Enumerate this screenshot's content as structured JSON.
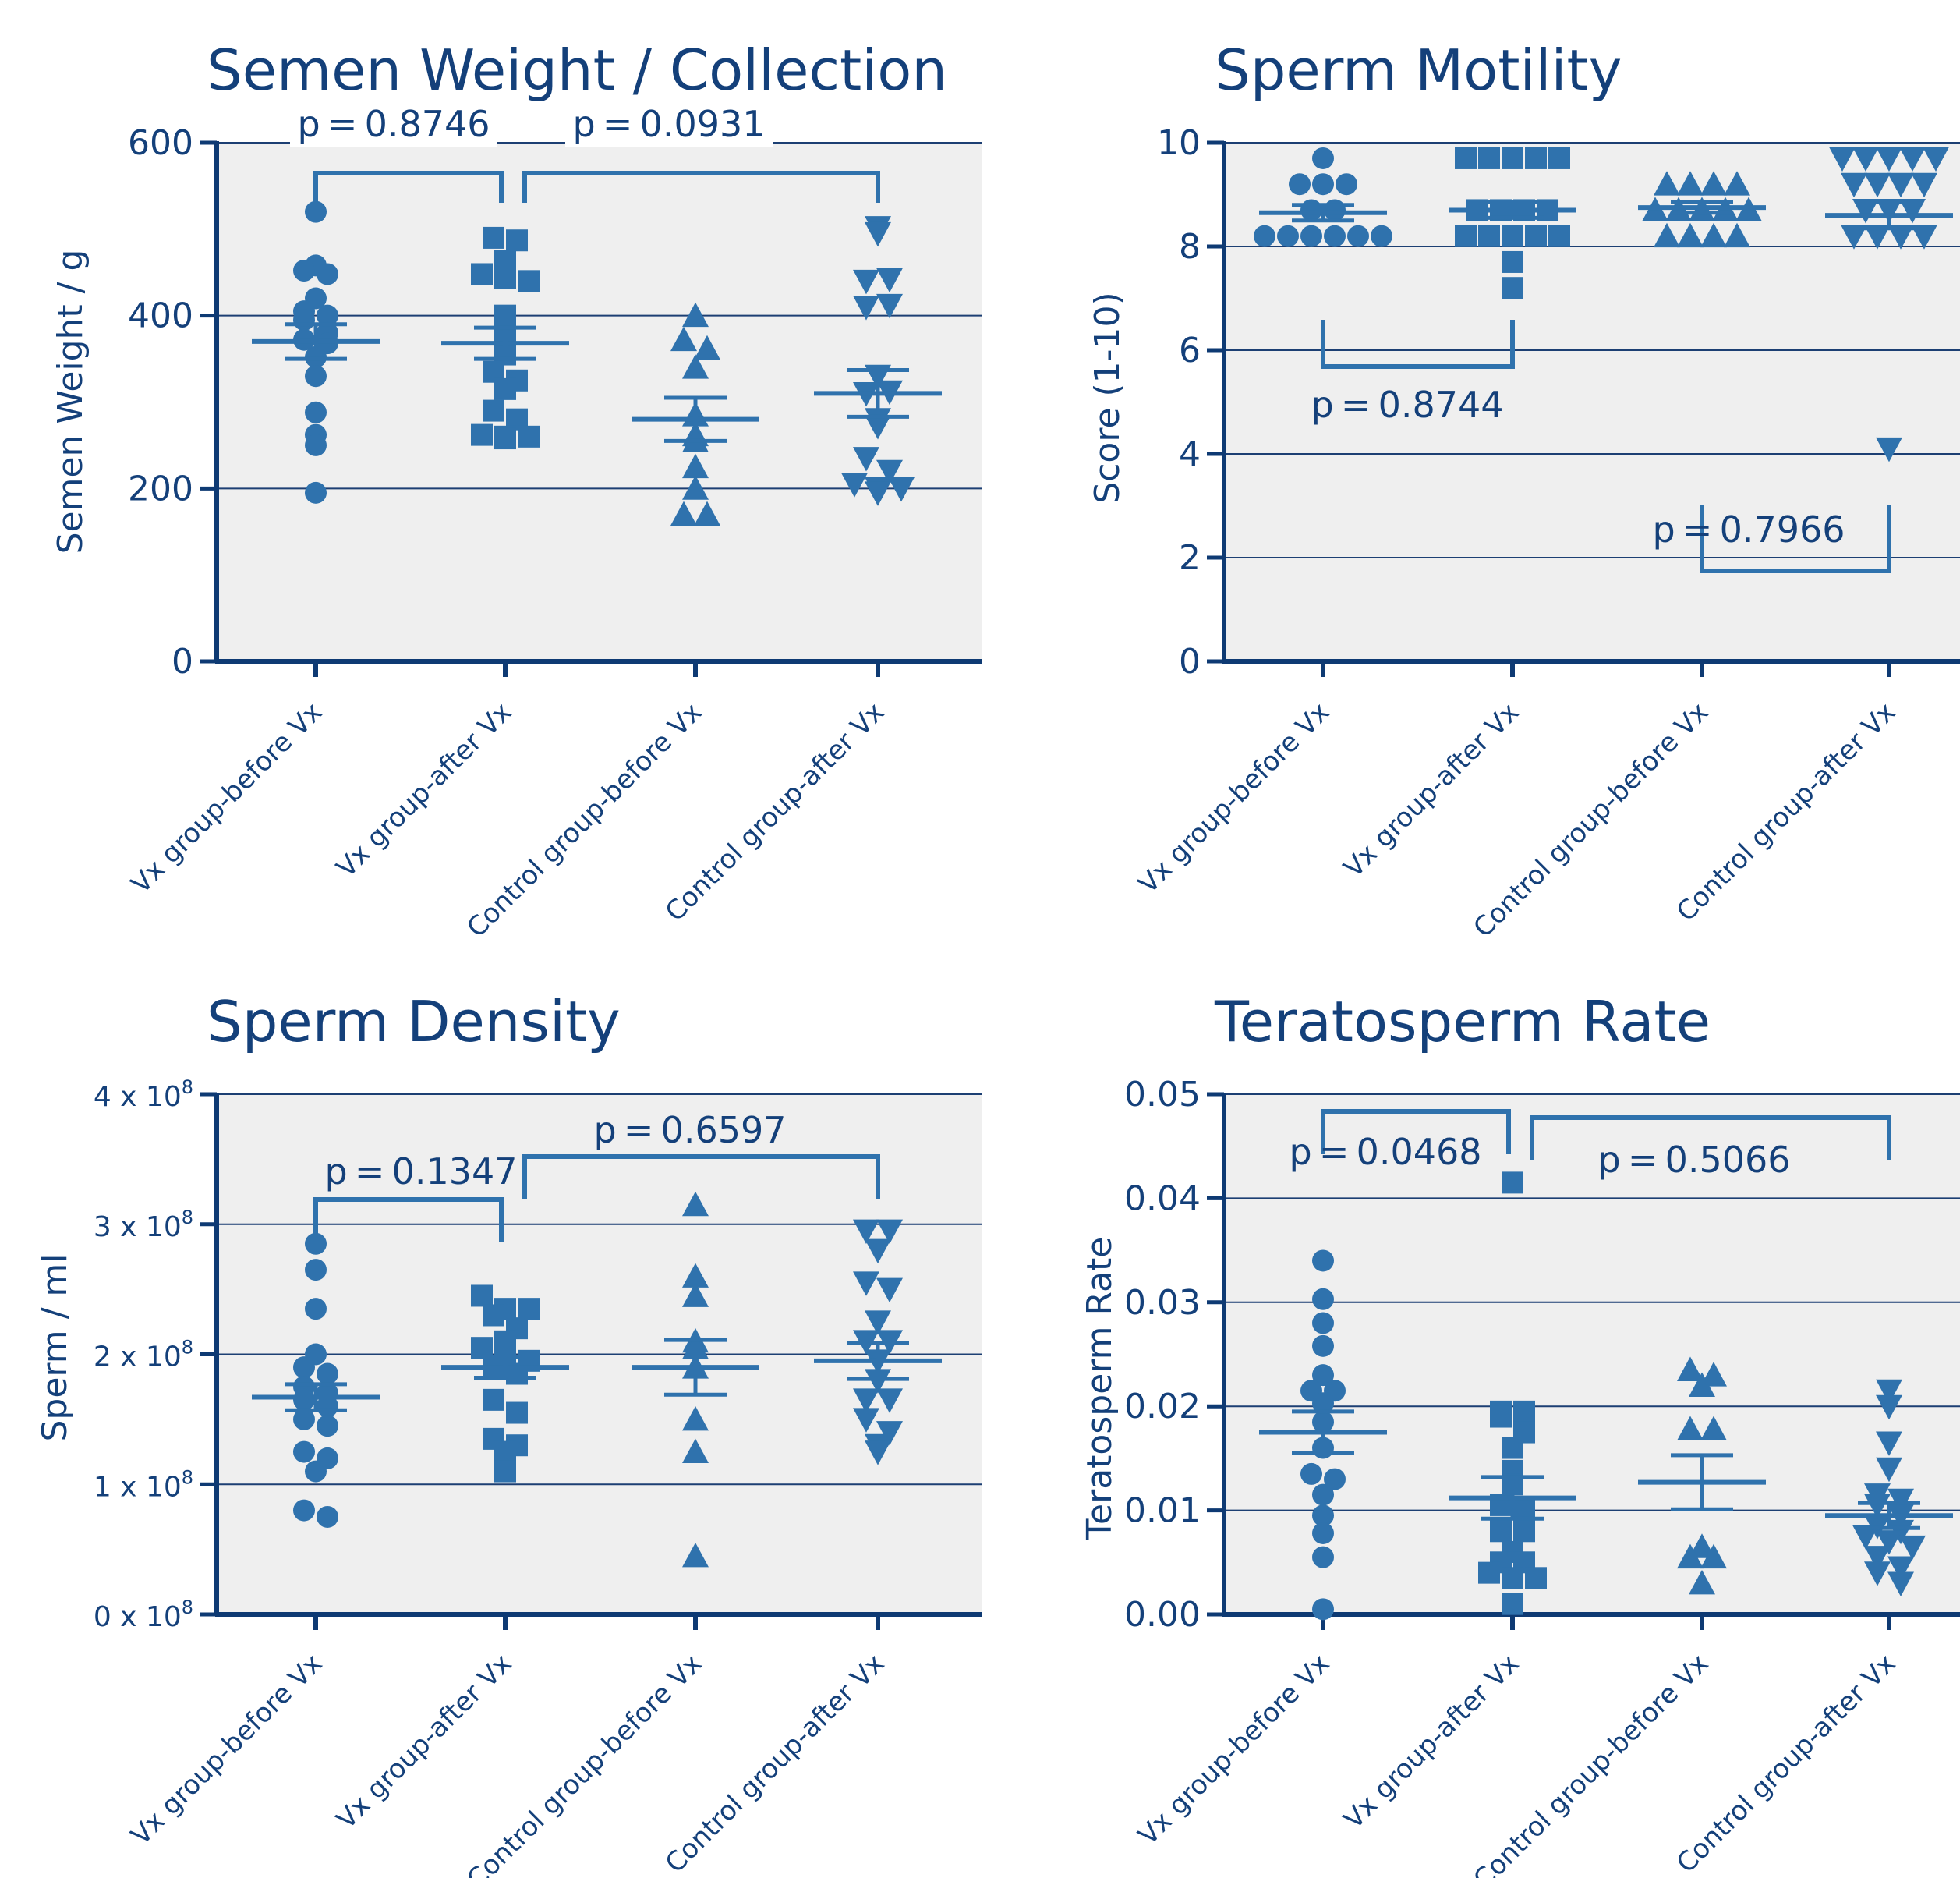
{
  "colors": {
    "marker": "#2f72ad",
    "axis": "#0e3a73",
    "text": "#14407a",
    "plot_bg": "#efefef",
    "grid": "#1c3f73",
    "bracket": "#2f72ad"
  },
  "chart_data": [
    {
      "type": "scatter",
      "title": "Semen Weight / Collection",
      "ylabel": "Semen Weight / g",
      "ylim": [
        0,
        600
      ],
      "yticks": [
        0,
        200,
        400,
        600
      ],
      "ytick_labels": [
        "0",
        "200",
        "400",
        "600"
      ],
      "grid": true,
      "categories": [
        "Vx group-before Vx",
        "Vx group-after Vx",
        "Control group-before Vx",
        "Control group-after Vx"
      ],
      "series": [
        {
          "marker": "circle",
          "values": [
            520,
            458,
            452,
            448,
            420,
            405,
            400,
            395,
            380,
            372,
            368,
            352,
            330,
            288,
            262,
            250,
            195
          ],
          "mean": 370,
          "sem": 20
        },
        {
          "marker": "square",
          "values": [
            490,
            487,
            463,
            448,
            443,
            440,
            400,
            395,
            370,
            355,
            335,
            325,
            315,
            290,
            280,
            262,
            260,
            260,
            258
          ],
          "mean": 368,
          "sem": 18
        },
        {
          "marker": "triangle-up",
          "values": [
            400,
            372,
            362,
            340,
            285,
            262,
            255,
            225,
            200,
            170,
            170
          ],
          "mean": 280,
          "sem": 25
        },
        {
          "marker": "triangle-down",
          "values": [
            502,
            495,
            440,
            442,
            410,
            412,
            330,
            310,
            312,
            280,
            272,
            235,
            220,
            205,
            200,
            200,
            195
          ],
          "mean": 310,
          "sem": 27
        }
      ],
      "comparisons": [
        {
          "label": "p = 0.8746",
          "from": 0,
          "to": 1
        },
        {
          "label": "p = 0.0931",
          "from": 1,
          "to": 3
        }
      ]
    },
    {
      "type": "scatter",
      "title": "Sperm Motility",
      "ylabel": "Score (1-10)",
      "ylim": [
        0,
        10
      ],
      "yticks": [
        0,
        2,
        4,
        6,
        8,
        10
      ],
      "ytick_labels": [
        "0",
        "2",
        "4",
        "6",
        "8",
        "10"
      ],
      "grid": true,
      "categories": [
        "Vx group-before Vx",
        "Vx group-after Vx",
        "Control group-before Vx",
        "Control group-after Vx"
      ],
      "series": [
        {
          "marker": "circle",
          "values": [
            9.7,
            9.2,
            9.2,
            9.2,
            8.7,
            8.7,
            8.2,
            8.2,
            8.2,
            8.2,
            8.2,
            8.2
          ],
          "mean": 8.65,
          "sem": 0.15
        },
        {
          "marker": "square",
          "values": [
            9.7,
            9.7,
            9.7,
            9.7,
            9.7,
            8.7,
            8.7,
            8.7,
            8.7,
            8.2,
            8.2,
            8.2,
            8.2,
            8.2,
            7.7,
            7.2
          ],
          "mean": 8.7,
          "sem": 0.15
        },
        {
          "marker": "triangle-up",
          "values": [
            9.2,
            9.2,
            9.2,
            9.2,
            8.7,
            8.7,
            8.7,
            8.7,
            8.7,
            8.2,
            8.2,
            8.2,
            8.2
          ],
          "mean": 8.75,
          "sem": 0.1
        },
        {
          "marker": "triangle-down",
          "values": [
            9.7,
            9.7,
            9.7,
            9.7,
            9.7,
            9.2,
            9.2,
            9.2,
            9.2,
            8.7,
            8.7,
            8.7,
            8.2,
            8.2,
            8.2,
            8.2,
            4.1
          ],
          "mean": 8.6,
          "sem": 0.25
        },
        {
          "marker": "none",
          "values": []
        }
      ],
      "comparisons": [
        {
          "label": "p = 0.8744",
          "from": 0,
          "to": 1
        },
        {
          "label": "p = 0.7966",
          "from": 2,
          "to": 3
        }
      ]
    },
    {
      "type": "scatter",
      "title": "Sperm Density",
      "ylabel": "Sperm / ml",
      "ylim": [
        0,
        4
      ],
      "yticks": [
        0,
        1,
        2,
        3,
        4
      ],
      "ytick_labels": [
        "0",
        "1",
        "2",
        "3",
        "4"
      ],
      "ytick_prefix": "x 10",
      "ytick_exp": "8",
      "grid": true,
      "categories": [
        "Vx group-before Vx",
        "Vx group-after Vx",
        "Control group-before Vx",
        "Control group-after Vx"
      ],
      "series": [
        {
          "marker": "circle",
          "values": [
            2.85,
            2.65,
            2.35,
            2.0,
            1.9,
            1.85,
            1.75,
            1.7,
            1.65,
            1.6,
            1.5,
            1.45,
            1.25,
            1.2,
            1.1,
            0.8,
            0.75
          ],
          "mean": 1.67,
          "sem": 0.1
        },
        {
          "marker": "square",
          "values": [
            2.45,
            2.35,
            2.35,
            2.3,
            2.2,
            2.1,
            2.05,
            2.0,
            1.95,
            1.9,
            1.85,
            1.65,
            1.55,
            1.35,
            1.3,
            1.25,
            1.1
          ],
          "mean": 1.9,
          "sem": 0.08
        },
        {
          "marker": "triangle-up",
          "values": [
            3.15,
            2.6,
            2.45,
            2.1,
            2.05,
            1.9,
            1.5,
            1.25,
            0.45
          ],
          "mean": 1.9,
          "sem": 0.21
        },
        {
          "marker": "triangle-down",
          "values": [
            2.95,
            2.95,
            2.8,
            2.55,
            2.5,
            2.25,
            2.1,
            2.1,
            1.95,
            1.8,
            1.65,
            1.65,
            1.5,
            1.4,
            1.3,
            1.25
          ],
          "mean": 1.95,
          "sem": 0.14
        }
      ],
      "comparisons": [
        {
          "label": "p = 0.1347",
          "from": 0,
          "to": 1
        },
        {
          "label": "p = 0.6597",
          "from": 1,
          "to": 3
        }
      ]
    },
    {
      "type": "scatter",
      "title": "Teratosperm Rate",
      "ylabel": "Teratosperm Rate",
      "ylim": [
        0,
        0.05
      ],
      "yticks": [
        0,
        0.01,
        0.02,
        0.03,
        0.04,
        0.05
      ],
      "ytick_labels": [
        "0.00",
        "0.01",
        "0.02",
        "0.03",
        "0.04",
        "0.05"
      ],
      "grid": true,
      "categories": [
        "Vx group-before Vx",
        "Vx group-after Vx",
        "Control group-before Vx",
        "Control group-after Vx"
      ],
      "series": [
        {
          "marker": "circle",
          "values": [
            0.034,
            0.0303,
            0.028,
            0.0258,
            0.023,
            0.0215,
            0.0215,
            0.0203,
            0.0185,
            0.016,
            0.0135,
            0.013,
            0.0115,
            0.0095,
            0.0078,
            0.0055,
            0.0005
          ],
          "mean": 0.0175,
          "sem": 0.002
        },
        {
          "marker": "square",
          "values": [
            0.0415,
            0.0195,
            0.0195,
            0.019,
            0.0175,
            0.016,
            0.0138,
            0.0125,
            0.0105,
            0.01,
            0.008,
            0.008,
            0.006,
            0.005,
            0.005,
            0.004,
            0.0035,
            0.0035,
            0.001
          ],
          "mean": 0.0112,
          "sem": 0.002
        },
        {
          "marker": "triangle-up",
          "values": [
            0.0235,
            0.023,
            0.022,
            0.0178,
            0.0178,
            0.0065,
            0.0055,
            0.0055,
            0.003
          ],
          "mean": 0.0127,
          "sem": 0.0026
        },
        {
          "marker": "triangle-down",
          "values": [
            0.0215,
            0.02,
            0.0165,
            0.014,
            0.0115,
            0.011,
            0.0105,
            0.0095,
            0.0085,
            0.008,
            0.0075,
            0.007,
            0.0065,
            0.0055,
            0.0045,
            0.004,
            0.003
          ],
          "mean": 0.0095,
          "sem": 0.0012
        }
      ],
      "comparisons": [
        {
          "label": "p = 0.0468",
          "from": 0,
          "to": 1
        },
        {
          "label": "p = 0.5066",
          "from": 1,
          "to": 3
        }
      ]
    }
  ]
}
